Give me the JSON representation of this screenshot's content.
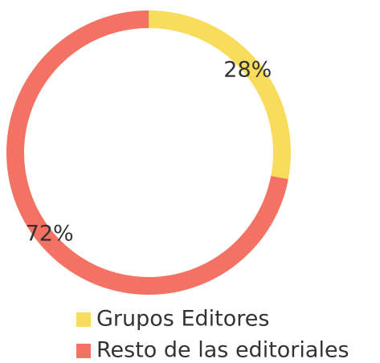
{
  "chart_data": {
    "type": "donut",
    "categories": [
      "Grupos Editores",
      "Resto de las editoriales"
    ],
    "values": [
      28,
      72
    ],
    "value_labels": [
      "28%",
      "72%"
    ],
    "colors": [
      "#f9dc5c",
      "#f47264"
    ],
    "legend": "bottom"
  }
}
